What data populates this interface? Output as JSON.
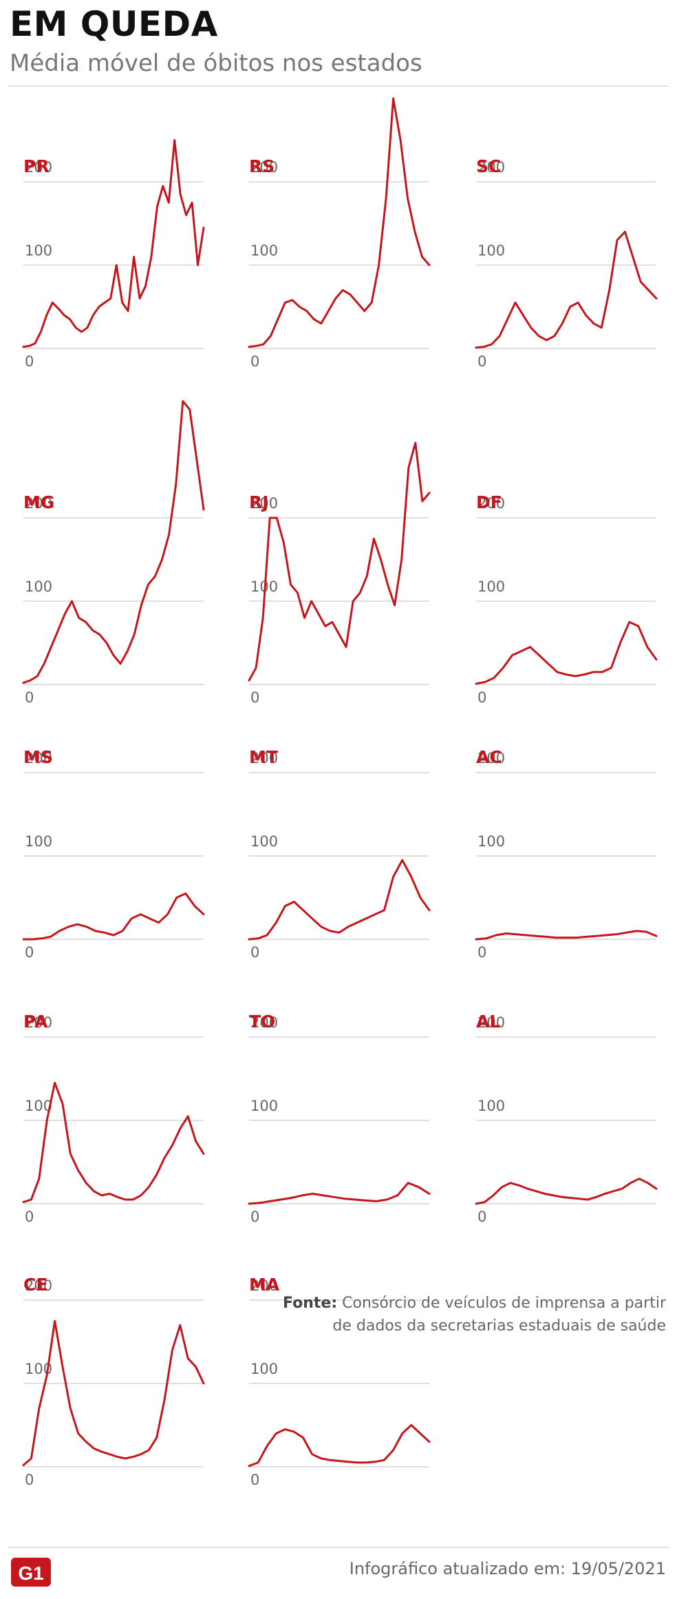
{
  "header": {
    "title": "EM QUEDA",
    "subtitle": "Média móvel de óbitos nos estados"
  },
  "footer": {
    "source_label": "Fonte:",
    "source_line1": "Consórcio de veículos de imprensa a partir",
    "source_line2": "de dados da secretarias estaduais de saúde",
    "logo_text": "G1",
    "updated": "Infográfico atualizado em: 19/05/2021"
  },
  "colors": {
    "line": "#c4161c",
    "label": "#c4161c",
    "grid": "#cccccc",
    "tick": "#666666",
    "logo": "#c4161c"
  },
  "chart_data": [
    {
      "type": "line",
      "title": "PR",
      "ylim": [
        0,
        300
      ],
      "yticks": [
        0,
        100,
        200
      ],
      "y": [
        2,
        3,
        6,
        20,
        40,
        55,
        48,
        40,
        35,
        25,
        20,
        25,
        40,
        50,
        55,
        60,
        100,
        55,
        45,
        110,
        60,
        75,
        110,
        170,
        195,
        175,
        250,
        185,
        160,
        175,
        100,
        145
      ]
    },
    {
      "type": "line",
      "title": "RS",
      "ylim": [
        0,
        300
      ],
      "yticks": [
        0,
        100,
        200
      ],
      "y": [
        2,
        3,
        5,
        15,
        35,
        55,
        58,
        50,
        45,
        35,
        30,
        45,
        60,
        70,
        65,
        55,
        45,
        55,
        100,
        180,
        300,
        250,
        180,
        140,
        110,
        100
      ]
    },
    {
      "type": "line",
      "title": "SC",
      "ylim": [
        0,
        300
      ],
      "yticks": [
        0,
        100,
        200
      ],
      "y": [
        1,
        2,
        5,
        15,
        35,
        55,
        40,
        25,
        15,
        10,
        15,
        30,
        50,
        55,
        40,
        30,
        25,
        70,
        130,
        140,
        110,
        80,
        70,
        60
      ]
    },
    {
      "type": "line",
      "title": "MG",
      "ylim": [
        0,
        340
      ],
      "yticks": [
        0,
        100,
        200
      ],
      "y": [
        2,
        5,
        10,
        25,
        45,
        65,
        85,
        100,
        80,
        75,
        65,
        60,
        50,
        35,
        25,
        40,
        60,
        95,
        120,
        130,
        150,
        180,
        240,
        340,
        330,
        270,
        210
      ]
    },
    {
      "type": "line",
      "title": "RJ",
      "ylim": [
        0,
        300
      ],
      "yticks": [
        0,
        100,
        200
      ],
      "y": [
        5,
        20,
        80,
        200,
        200,
        170,
        120,
        110,
        80,
        100,
        85,
        70,
        75,
        60,
        45,
        100,
        110,
        130,
        175,
        150,
        120,
        95,
        150,
        260,
        290,
        220,
        230
      ]
    },
    {
      "type": "line",
      "title": "DF",
      "ylim": [
        0,
        300
      ],
      "yticks": [
        0,
        100,
        200
      ],
      "y": [
        1,
        3,
        8,
        20,
        35,
        40,
        45,
        35,
        25,
        15,
        12,
        10,
        12,
        15,
        15,
        20,
        50,
        75,
        70,
        45,
        30
      ]
    },
    {
      "type": "line",
      "title": "MS",
      "ylim": [
        0,
        300
      ],
      "yticks": [
        0,
        100,
        200
      ],
      "y": [
        0,
        0,
        1,
        3,
        10,
        15,
        18,
        15,
        10,
        8,
        5,
        10,
        25,
        30,
        25,
        20,
        30,
        50,
        55,
        40,
        30
      ]
    },
    {
      "type": "line",
      "title": "MT",
      "ylim": [
        0,
        300
      ],
      "yticks": [
        0,
        100,
        200
      ],
      "y": [
        0,
        1,
        5,
        20,
        40,
        45,
        35,
        25,
        15,
        10,
        8,
        15,
        20,
        25,
        30,
        35,
        75,
        95,
        75,
        50,
        35
      ]
    },
    {
      "type": "line",
      "title": "AC",
      "ylim": [
        0,
        300
      ],
      "yticks": [
        0,
        100,
        200
      ],
      "y": [
        0,
        1,
        5,
        7,
        6,
        5,
        4,
        3,
        2,
        2,
        2,
        3,
        4,
        5,
        6,
        8,
        10,
        9,
        4
      ]
    },
    {
      "type": "line",
      "title": "PA",
      "ylim": [
        0,
        300
      ],
      "yticks": [
        0,
        100,
        200
      ],
      "y": [
        2,
        5,
        30,
        100,
        145,
        120,
        60,
        40,
        25,
        15,
        10,
        12,
        8,
        5,
        5,
        10,
        20,
        35,
        55,
        70,
        90,
        105,
        75,
        60
      ]
    },
    {
      "type": "line",
      "title": "TO",
      "ylim": [
        0,
        300
      ],
      "yticks": [
        0,
        100,
        200
      ],
      "y": [
        0,
        1,
        3,
        5,
        7,
        10,
        12,
        10,
        8,
        6,
        5,
        4,
        3,
        5,
        10,
        25,
        20,
        12
      ]
    },
    {
      "type": "line",
      "title": "AL",
      "ylim": [
        0,
        300
      ],
      "yticks": [
        0,
        100,
        200
      ],
      "y": [
        0,
        2,
        10,
        20,
        25,
        22,
        18,
        15,
        12,
        10,
        8,
        7,
        6,
        5,
        8,
        12,
        15,
        18,
        25,
        30,
        25,
        18
      ]
    },
    {
      "type": "line",
      "title": "CE",
      "ylim": [
        0,
        300
      ],
      "yticks": [
        0,
        100,
        200
      ],
      "y": [
        2,
        10,
        70,
        110,
        175,
        120,
        70,
        40,
        30,
        22,
        18,
        15,
        12,
        10,
        12,
        15,
        20,
        35,
        80,
        140,
        170,
        130,
        120,
        100
      ]
    },
    {
      "type": "line",
      "title": "MA",
      "ylim": [
        0,
        300
      ],
      "yticks": [
        0,
        100,
        200
      ],
      "y": [
        1,
        5,
        25,
        40,
        45,
        42,
        35,
        15,
        10,
        8,
        7,
        6,
        5,
        5,
        6,
        8,
        20,
        40,
        50,
        40,
        30
      ]
    }
  ]
}
